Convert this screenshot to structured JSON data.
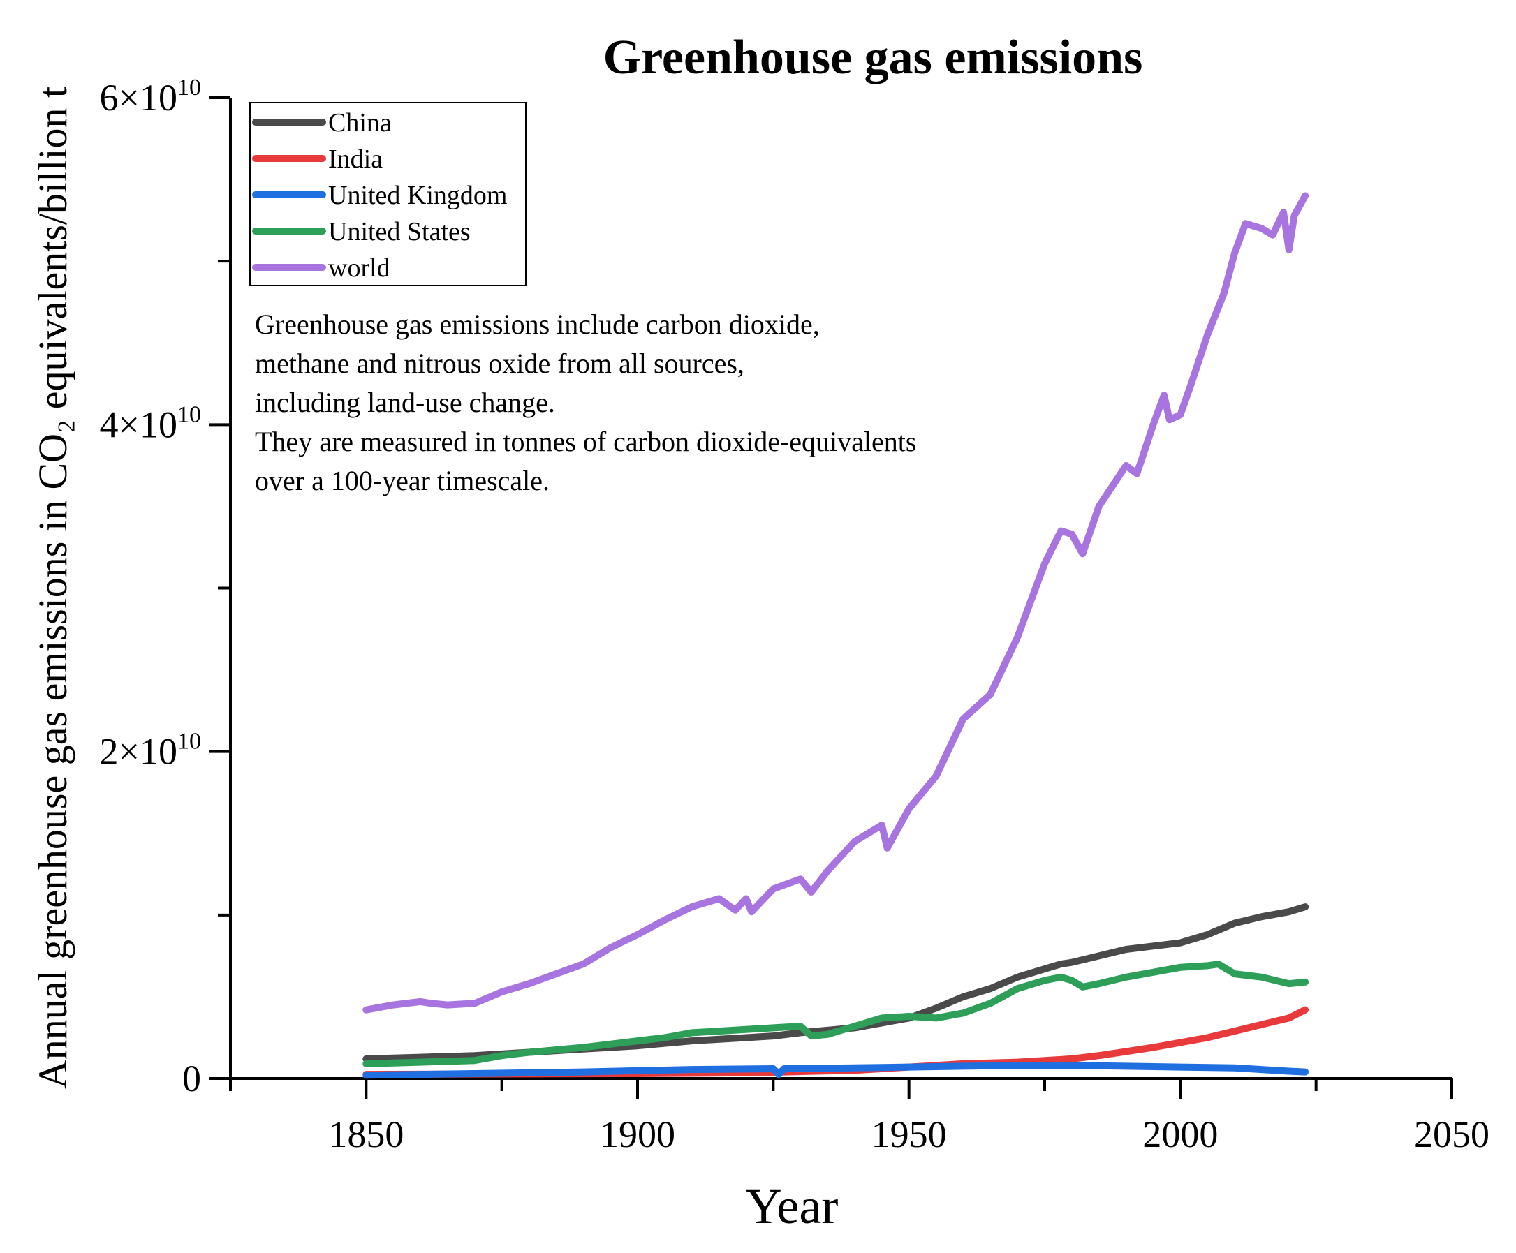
{
  "chart_data": {
    "type": "line",
    "title": "Greenhouse gas emissions",
    "xlabel": "Year",
    "ylabel": "Annual greenhouse gas emissions in CO₂ equivalents/billion t",
    "xlim": [
      1825,
      2050
    ],
    "ylim": [
      0,
      60000000000
    ],
    "x_ticks": [
      1850,
      1900,
      1950,
      2000,
      2050
    ],
    "x_tick_labels": [
      "1850",
      "1900",
      "1950",
      "2000",
      "2050"
    ],
    "y_ticks": [
      0,
      20000000000,
      40000000000,
      60000000000
    ],
    "y_tick_labels": [
      {
        "mant": "0",
        "exp": ""
      },
      {
        "mant": "2×10",
        "exp": "10"
      },
      {
        "mant": "4×10",
        "exp": "10"
      },
      {
        "mant": "6×10",
        "exp": "10"
      }
    ],
    "note": [
      "Greenhouse gas emissions include carbon dioxide,",
      "methane and nitrous oxide from all sources,",
      "including land-use change.",
      "They are measured in tonnes of carbon dioxide-equivalents",
      "over a 100-year timescale."
    ],
    "legend_position": "top-left",
    "series": [
      {
        "name": "China",
        "color": "#4a4a4a",
        "x": [
          1850,
          1860,
          1870,
          1880,
          1890,
          1900,
          1910,
          1920,
          1925,
          1930,
          1940,
          1945,
          1950,
          1955,
          1960,
          1965,
          1970,
          1975,
          1978,
          1980,
          1985,
          1990,
          1995,
          2000,
          2005,
          2010,
          2015,
          2020,
          2023
        ],
        "values": [
          1200000000,
          1300000000,
          1400000000,
          1600000000,
          1800000000,
          2000000000,
          2300000000,
          2500000000,
          2600000000,
          2800000000,
          3100000000,
          3400000000,
          3700000000,
          4300000000,
          5000000000,
          5500000000,
          6200000000,
          6700000000,
          7000000000,
          7100000000,
          7500000000,
          7900000000,
          8100000000,
          8300000000,
          8800000000,
          9500000000,
          9900000000,
          10200000000,
          10500000000
        ]
      },
      {
        "name": "India",
        "color": "#e83a3a",
        "x": [
          1850,
          1880,
          1900,
          1920,
          1940,
          1950,
          1960,
          1970,
          1980,
          1985,
          1990,
          1995,
          2000,
          2005,
          2010,
          2015,
          2020,
          2023
        ],
        "values": [
          250000000,
          280000000,
          300000000,
          350000000,
          500000000,
          700000000,
          900000000,
          1000000000,
          1200000000,
          1400000000,
          1650000000,
          1900000000,
          2200000000,
          2500000000,
          2900000000,
          3300000000,
          3700000000,
          4200000000
        ]
      },
      {
        "name": "United Kingdom",
        "color": "#1f6fe0",
        "x": [
          1850,
          1870,
          1890,
          1910,
          1925,
          1926,
          1927,
          1940,
          1950,
          1960,
          1970,
          1980,
          1990,
          2000,
          2010,
          2020,
          2023
        ],
        "values": [
          200000000,
          300000000,
          400000000,
          550000000,
          600000000,
          250000000,
          600000000,
          650000000,
          700000000,
          750000000,
          800000000,
          800000000,
          750000000,
          700000000,
          650000000,
          450000000,
          400000000
        ]
      },
      {
        "name": "United States",
        "color": "#2e9f58",
        "x": [
          1850,
          1860,
          1870,
          1875,
          1880,
          1890,
          1900,
          1905,
          1910,
          1915,
          1920,
          1925,
          1930,
          1932,
          1935,
          1940,
          1945,
          1950,
          1955,
          1960,
          1965,
          1970,
          1975,
          1978,
          1980,
          1982,
          1985,
          1990,
          1995,
          2000,
          2005,
          2007,
          2010,
          2015,
          2020,
          2023
        ],
        "values": [
          900000000,
          1000000000,
          1100000000,
          1400000000,
          1600000000,
          1900000000,
          2300000000,
          2500000000,
          2800000000,
          2900000000,
          3000000000,
          3100000000,
          3200000000,
          2600000000,
          2700000000,
          3200000000,
          3700000000,
          3800000000,
          3700000000,
          4000000000,
          4600000000,
          5500000000,
          6000000000,
          6200000000,
          6000000000,
          5600000000,
          5800000000,
          6200000000,
          6500000000,
          6800000000,
          6900000000,
          7000000000,
          6400000000,
          6200000000,
          5800000000,
          5900000000
        ]
      },
      {
        "name": "world",
        "color": "#a875e0",
        "x": [
          1850,
          1855,
          1860,
          1862,
          1865,
          1870,
          1875,
          1880,
          1885,
          1890,
          1895,
          1900,
          1905,
          1910,
          1915,
          1918,
          1920,
          1921,
          1925,
          1930,
          1932,
          1935,
          1940,
          1945,
          1946,
          1950,
          1955,
          1960,
          1965,
          1970,
          1975,
          1978,
          1980,
          1982,
          1985,
          1990,
          1992,
          1995,
          1997,
          1998,
          2000,
          2002,
          2005,
          2008,
          2010,
          2012,
          2015,
          2017,
          2019,
          2020,
          2021,
          2023
        ],
        "values": [
          4200000000,
          4500000000,
          4700000000,
          4600000000,
          4500000000,
          4600000000,
          5300000000,
          5800000000,
          6400000000,
          7000000000,
          8000000000,
          8800000000,
          9700000000,
          10500000000,
          11000000000,
          10300000000,
          11000000000,
          10200000000,
          11600000000,
          12200000000,
          11400000000,
          12700000000,
          14500000000,
          15500000000,
          14100000000,
          16500000000,
          18500000000,
          22000000000,
          23500000000,
          27000000000,
          31500000000,
          33500000000,
          33300000000,
          32100000000,
          35000000000,
          37500000000,
          37000000000,
          40000000000,
          41800000000,
          40300000000,
          40600000000,
          42500000000,
          45500000000,
          48000000000,
          50500000000,
          52300000000,
          52000000000,
          51600000000,
          53000000000,
          50700000000,
          52800000000,
          54000000000
        ]
      }
    ]
  }
}
